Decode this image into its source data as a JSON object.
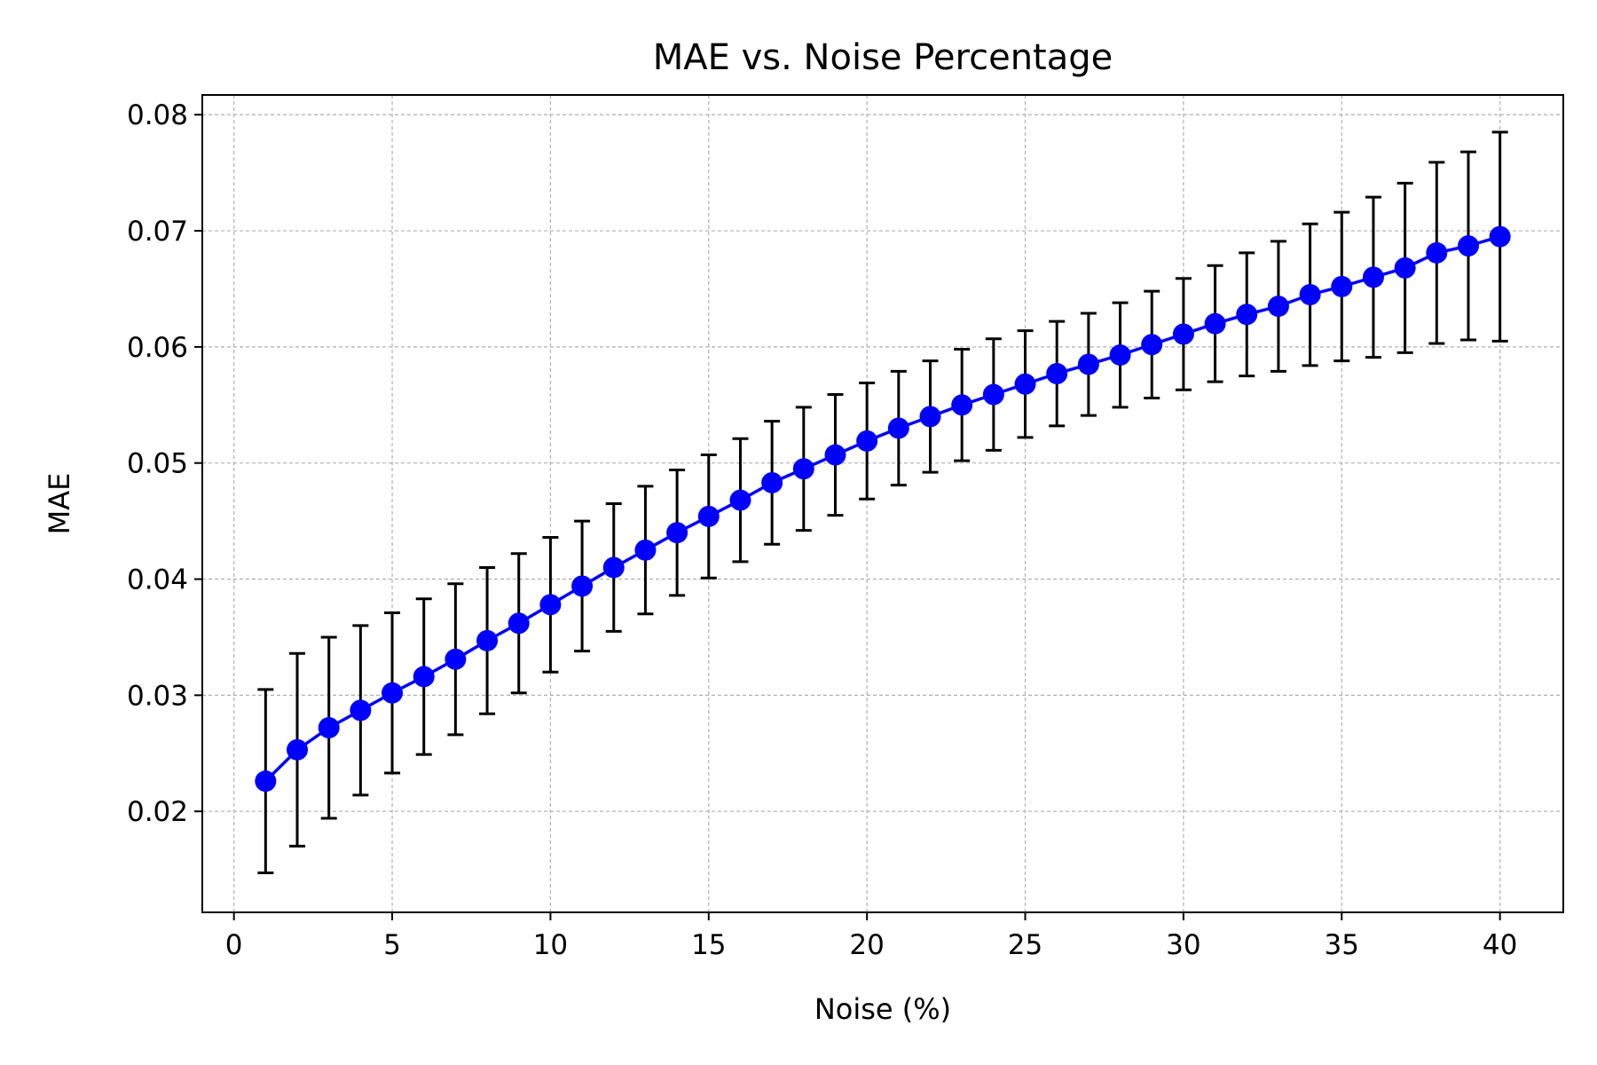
{
  "chart_data": {
    "type": "line",
    "title": "MAE vs. Noise Percentage",
    "xlabel": "Noise (%)",
    "ylabel": "MAE",
    "xlim": [
      -1,
      42
    ],
    "ylim": [
      0.0113,
      0.0817
    ],
    "xticks": [
      0,
      5,
      10,
      15,
      20,
      25,
      30,
      35,
      40
    ],
    "xtick_labels": [
      "0",
      "5",
      "10",
      "15",
      "20",
      "25",
      "30",
      "35",
      "40"
    ],
    "yticks": [
      0.02,
      0.03,
      0.04,
      0.05,
      0.06,
      0.07,
      0.08
    ],
    "ytick_labels": [
      "0.02",
      "0.03",
      "0.04",
      "0.05",
      "0.06",
      "0.07",
      "0.08"
    ],
    "grid": true,
    "colors": {
      "line": "#0000ff",
      "marker": "#0000ff",
      "errorbar": "#000000",
      "grid": "#b0b0b0"
    },
    "series": [
      {
        "x": [
          1,
          2,
          3,
          4,
          5,
          6,
          7,
          8,
          9,
          10,
          11,
          12,
          13,
          14,
          15,
          16,
          17,
          18,
          19,
          20,
          21,
          22,
          23,
          24,
          25,
          26,
          27,
          28,
          29,
          30,
          31,
          32,
          33,
          34,
          35,
          36,
          37,
          38,
          39,
          40
        ],
        "y": [
          0.0226,
          0.0253,
          0.0272,
          0.0287,
          0.0302,
          0.0316,
          0.0331,
          0.0347,
          0.0362,
          0.0378,
          0.0394,
          0.041,
          0.0425,
          0.044,
          0.0454,
          0.0468,
          0.0483,
          0.0495,
          0.0507,
          0.0519,
          0.053,
          0.054,
          0.055,
          0.0559,
          0.0568,
          0.0577,
          0.0585,
          0.0593,
          0.0602,
          0.0611,
          0.062,
          0.0628,
          0.0635,
          0.0645,
          0.0652,
          0.066,
          0.0668,
          0.0681,
          0.0687,
          0.0695
        ],
        "yerr": [
          0.0079,
          0.0083,
          0.0078,
          0.0073,
          0.0069,
          0.0067,
          0.0065,
          0.0063,
          0.006,
          0.0058,
          0.0056,
          0.0055,
          0.0055,
          0.0054,
          0.0053,
          0.0053,
          0.0053,
          0.0053,
          0.0052,
          0.005,
          0.0049,
          0.0048,
          0.0048,
          0.0048,
          0.0046,
          0.0045,
          0.0044,
          0.0045,
          0.0046,
          0.0048,
          0.005,
          0.0053,
          0.0056,
          0.0061,
          0.0064,
          0.0069,
          0.0073,
          0.0078,
          0.0081,
          0.009
        ]
      }
    ]
  }
}
